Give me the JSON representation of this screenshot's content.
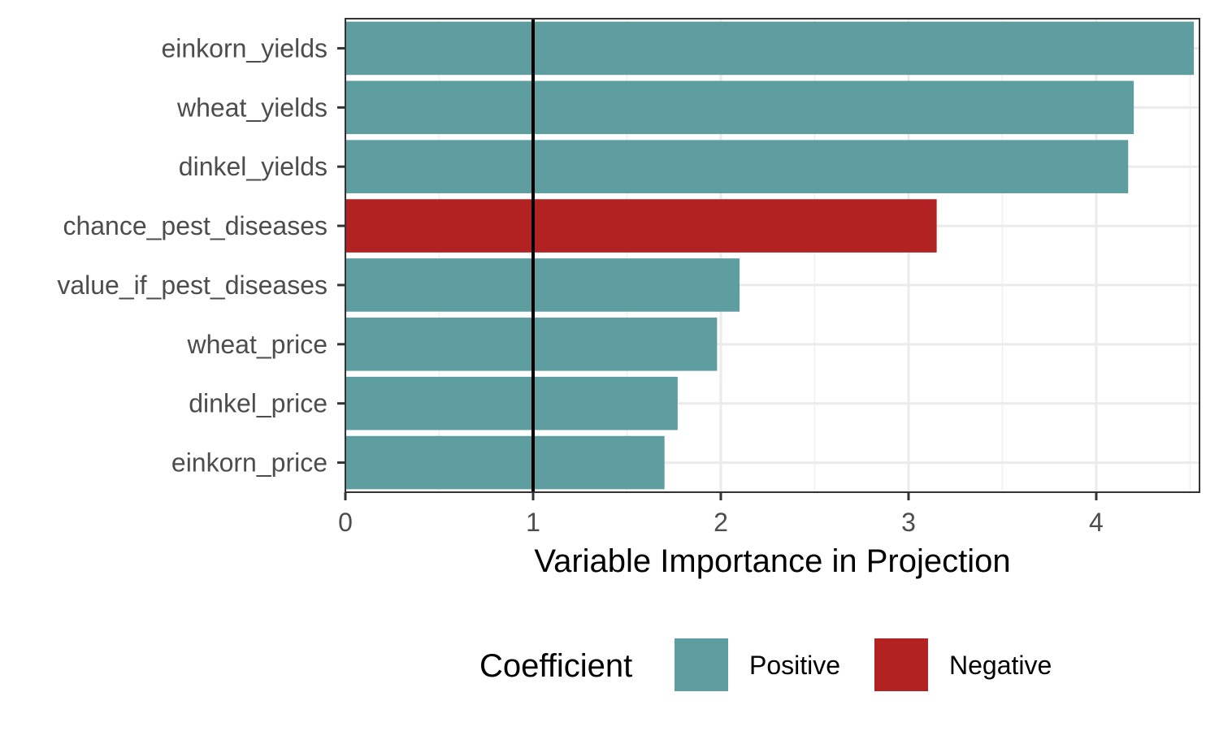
{
  "chart_data": {
    "type": "bar",
    "orientation": "horizontal",
    "categories": [
      "einkorn_yields",
      "wheat_yields",
      "dinkel_yields",
      "chance_pest_diseases",
      "value_if_pest_diseases",
      "wheat_price",
      "dinkel_price",
      "einkorn_price"
    ],
    "values": [
      4.52,
      4.2,
      4.17,
      3.15,
      2.1,
      1.98,
      1.77,
      1.7
    ],
    "coefficient": [
      "Positive",
      "Positive",
      "Positive",
      "Negative",
      "Positive",
      "Positive",
      "Positive",
      "Positive"
    ],
    "xlabel": "Variable Importance in Projection",
    "ylabel": "",
    "xlim": [
      0,
      4.55
    ],
    "x_ticks": [
      0,
      1,
      2,
      3,
      4
    ],
    "reference_line": 1,
    "grid": true,
    "legend": {
      "title": "Coefficient",
      "position": "bottom",
      "entries": [
        {
          "label": "Positive",
          "color": "#5f9ea0"
        },
        {
          "label": "Negative",
          "color": "#b22222"
        }
      ]
    }
  }
}
